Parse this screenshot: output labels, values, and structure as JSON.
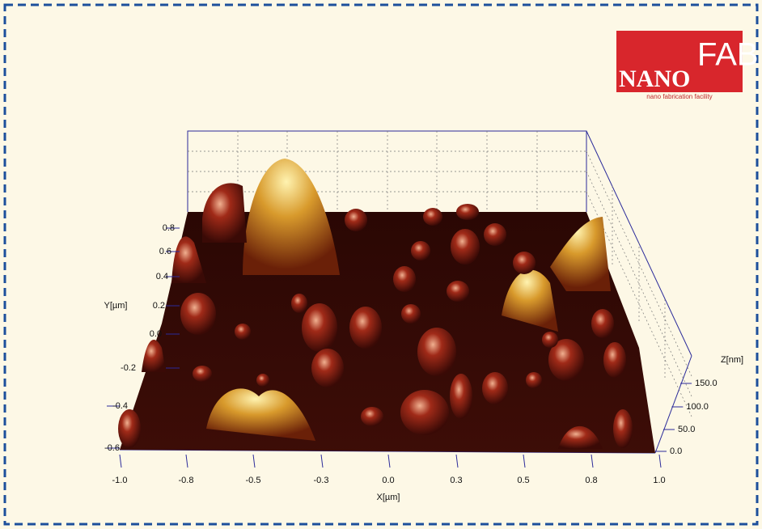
{
  "logo": {
    "left": "NANO",
    "right": "FAB",
    "tagline": "nano fabrication facility"
  },
  "axes": {
    "x": {
      "label": "X[µm]",
      "ticks": [
        "-1.0",
        "-0.8",
        "-0.5",
        "-0.3",
        "0.0",
        "0.3",
        "0.5",
        "0.8",
        "1.0"
      ]
    },
    "y": {
      "label": "Y[µm]",
      "ticks": [
        "0.8",
        "0.6",
        "0.4",
        "0.2",
        "0.0",
        "-0.2",
        "-0.4",
        "-0.6"
      ]
    },
    "z": {
      "label": "Z[nm]",
      "ticks": [
        "150.0",
        "100.0",
        "50.0",
        "0.0"
      ]
    }
  }
}
